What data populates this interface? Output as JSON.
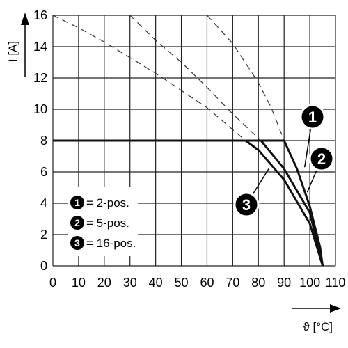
{
  "chart_data": {
    "type": "line",
    "title": "",
    "xlabel": "ϑ [°C]",
    "ylabel": "I [A]",
    "xlim": [
      0,
      110
    ],
    "ylim": [
      0,
      16
    ],
    "x_ticks": [
      "0",
      "10",
      "20",
      "30",
      "40",
      "50",
      "60",
      "70",
      "80",
      "90",
      "100",
      "110"
    ],
    "y_ticks": [
      "0",
      "2",
      "4",
      "6",
      "8",
      "10",
      "12",
      "14",
      "16"
    ],
    "grid": true,
    "legend": {
      "placement": "bottom-left",
      "entries": [
        {
          "badge": "1",
          "text": "= 2-pos."
        },
        {
          "badge": "2",
          "text": "= 5-pos."
        },
        {
          "badge": "3",
          "text": "= 16-pos."
        }
      ]
    },
    "series": [
      {
        "badge": "1",
        "solid": {
          "x": [
            0,
            90,
            95,
            100,
            104,
            105
          ],
          "y": [
            8,
            8,
            6.2,
            3.8,
            1.2,
            0
          ]
        },
        "dashed": {
          "x": [
            60,
            70,
            80,
            85,
            90
          ],
          "y": [
            16,
            14.2,
            11.7,
            10.1,
            8
          ]
        }
      },
      {
        "badge": "2",
        "solid": {
          "x": [
            0,
            81,
            90,
            100,
            105
          ],
          "y": [
            8,
            8,
            6.2,
            3.4,
            0
          ]
        },
        "dashed": {
          "x": [
            30,
            40,
            50,
            60,
            70,
            81
          ],
          "y": [
            16,
            14.4,
            13.0,
            11.4,
            9.7,
            8
          ]
        }
      },
      {
        "badge": "3",
        "solid": {
          "x": [
            0,
            75,
            80,
            90,
            100,
            105
          ],
          "y": [
            8,
            8,
            7.4,
            5.5,
            2.7,
            0
          ]
        },
        "dashed": {
          "x": [
            0,
            10,
            20,
            30,
            40,
            50,
            60,
            70,
            75
          ],
          "y": [
            16,
            15.2,
            14.3,
            13.3,
            12.3,
            11.2,
            10.1,
            8.7,
            8
          ]
        }
      }
    ],
    "callouts": [
      {
        "badge": "1",
        "at": {
          "x": 98,
          "y": 6.3
        }
      },
      {
        "badge": "2",
        "at": {
          "x": 99,
          "y": 4.7
        }
      },
      {
        "badge": "3",
        "at": {
          "x": 84,
          "y": 6.2
        }
      }
    ]
  }
}
